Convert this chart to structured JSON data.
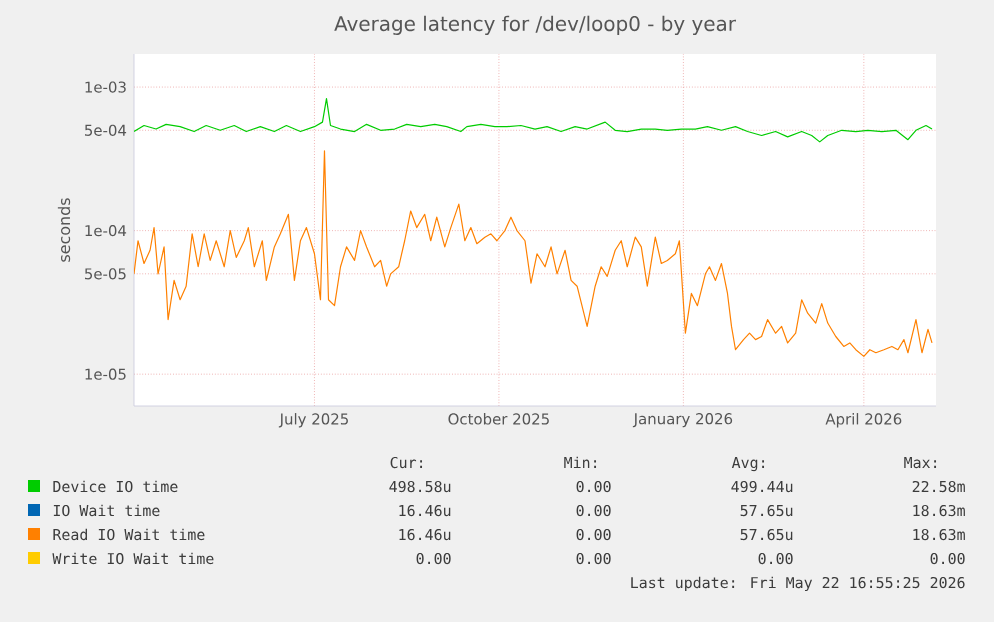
{
  "chart_data": {
    "type": "line",
    "title": "Average latency for /dev/loop0 - by year",
    "ylabel": "seconds",
    "log": "y",
    "grid": true,
    "legend": "bottom",
    "marker": "none",
    "line_style": "solid",
    "xlim": [
      "2025-04-17",
      "2026-05-22"
    ],
    "xticks": [
      {
        "value": "2025-07-16",
        "label": "July 2025"
      },
      {
        "value": "2025-10-16",
        "label": "October 2025"
      },
      {
        "value": "2026-01-16",
        "label": "January 2026"
      },
      {
        "value": "2026-04-16",
        "label": "April 2026"
      }
    ],
    "ylim": [
      6e-06,
      0.0017
    ],
    "yticks": [
      {
        "value": 1e-05,
        "label": "1e-05"
      },
      {
        "value": 5e-05,
        "label": "5e-05"
      },
      {
        "value": 0.0001,
        "label": "1e-04"
      },
      {
        "value": 0.0005,
        "label": "5e-04"
      },
      {
        "value": 0.001,
        "label": "1e-03"
      }
    ],
    "series": [
      {
        "name": "Device IO time",
        "color": "#00cc00",
        "x": [
          "2025-04-17",
          "2025-04-22",
          "2025-04-28",
          "2025-05-03",
          "2025-05-10",
          "2025-05-17",
          "2025-05-23",
          "2025-05-30",
          "2025-06-06",
          "2025-06-12",
          "2025-06-19",
          "2025-06-26",
          "2025-07-02",
          "2025-07-09",
          "2025-07-16",
          "2025-07-20",
          "2025-07-22",
          "2025-07-24",
          "2025-07-29",
          "2025-08-05",
          "2025-08-11",
          "2025-08-18",
          "2025-08-25",
          "2025-08-31",
          "2025-09-07",
          "2025-09-14",
          "2025-09-20",
          "2025-09-27",
          "2025-09-30",
          "2025-10-07",
          "2025-10-14",
          "2025-10-20",
          "2025-10-27",
          "2025-11-03",
          "2025-11-09",
          "2025-11-16",
          "2025-11-23",
          "2025-11-29",
          "2025-12-08",
          "2025-12-13",
          "2025-12-19",
          "2025-12-26",
          "2026-01-02",
          "2026-01-08",
          "2026-01-15",
          "2026-01-22",
          "2026-01-28",
          "2026-02-04",
          "2026-02-11",
          "2026-02-17",
          "2026-02-24",
          "2026-03-03",
          "2026-03-09",
          "2026-03-16",
          "2026-03-21",
          "2026-03-25",
          "2026-03-29",
          "2026-04-05",
          "2026-04-12",
          "2026-04-18",
          "2026-04-25",
          "2026-05-02",
          "2026-05-08",
          "2026-05-12",
          "2026-05-17",
          "2026-05-20"
        ],
        "values": [
          0.00049,
          0.00054,
          0.00051,
          0.00055,
          0.00053,
          0.00049,
          0.00054,
          0.0005,
          0.00054,
          0.00049,
          0.00053,
          0.00049,
          0.00054,
          0.00049,
          0.00053,
          0.00057,
          0.00083,
          0.00054,
          0.00051,
          0.00049,
          0.00055,
          0.0005,
          0.00051,
          0.00055,
          0.00053,
          0.00055,
          0.00053,
          0.00049,
          0.00053,
          0.00055,
          0.00053,
          0.00053,
          0.00054,
          0.00051,
          0.00053,
          0.00049,
          0.00053,
          0.00051,
          0.00057,
          0.0005,
          0.00049,
          0.00051,
          0.00051,
          0.0005,
          0.00051,
          0.00051,
          0.00053,
          0.0005,
          0.00053,
          0.00049,
          0.00046,
          0.00049,
          0.00045,
          0.00049,
          0.00046,
          0.000415,
          0.00046,
          0.0005,
          0.00049,
          0.0005,
          0.00049,
          0.0005,
          0.00043,
          0.0005,
          0.00054,
          0.00051
        ]
      },
      {
        "name": "IO Wait time",
        "color": "#0066b3"
      },
      {
        "name": "Read IO Wait time",
        "color": "#ff8000",
        "x": [
          "2025-04-17",
          "2025-04-19",
          "2025-04-22",
          "2025-04-25",
          "2025-04-27",
          "2025-04-29",
          "2025-05-02",
          "2025-05-04",
          "2025-05-07",
          "2025-05-10",
          "2025-05-13",
          "2025-05-16",
          "2025-05-19",
          "2025-05-22",
          "2025-05-25",
          "2025-05-28",
          "2025-06-01",
          "2025-06-04",
          "2025-06-07",
          "2025-06-11",
          "2025-06-13",
          "2025-06-16",
          "2025-06-20",
          "2025-06-22",
          "2025-06-26",
          "2025-06-29",
          "2025-07-03",
          "2025-07-06",
          "2025-07-09",
          "2025-07-12",
          "2025-07-16",
          "2025-07-19",
          "2025-07-21",
          "2025-07-23",
          "2025-07-26",
          "2025-07-29",
          "2025-08-01",
          "2025-08-05",
          "2025-08-08",
          "2025-08-11",
          "2025-08-15",
          "2025-08-18",
          "2025-08-21",
          "2025-08-23",
          "2025-08-27",
          "2025-08-30",
          "2025-09-02",
          "2025-09-05",
          "2025-09-09",
          "2025-09-12",
          "2025-09-15",
          "2025-09-19",
          "2025-09-22",
          "2025-09-26",
          "2025-09-29",
          "2025-10-02",
          "2025-10-05",
          "2025-10-09",
          "2025-10-12",
          "2025-10-15",
          "2025-10-19",
          "2025-10-22",
          "2025-10-25",
          "2025-10-29",
          "2025-11-01",
          "2025-11-04",
          "2025-11-08",
          "2025-11-11",
          "2025-11-14",
          "2025-11-18",
          "2025-11-21",
          "2025-11-24",
          "2025-11-29",
          "2025-12-03",
          "2025-12-06",
          "2025-12-09",
          "2025-12-13",
          "2025-12-16",
          "2025-12-19",
          "2025-12-23",
          "2025-12-26",
          "2025-12-29",
          "2026-01-02",
          "2026-01-05",
          "2026-01-08",
          "2026-01-12",
          "2026-01-14",
          "2026-01-17",
          "2026-01-20",
          "2026-01-23",
          "2026-01-27",
          "2026-01-29",
          "2026-02-01",
          "2026-02-04",
          "2026-02-07",
          "2026-02-09",
          "2026-02-11",
          "2026-02-15",
          "2026-02-18",
          "2026-02-21",
          "2026-02-24",
          "2026-02-27",
          "2026-03-03",
          "2026-03-06",
          "2026-03-09",
          "2026-03-13",
          "2026-03-16",
          "2026-03-19",
          "2026-03-23",
          "2026-03-26",
          "2026-03-29",
          "2026-04-02",
          "2026-04-06",
          "2026-04-09",
          "2026-04-12",
          "2026-04-16",
          "2026-04-19",
          "2026-04-22",
          "2026-04-26",
          "2026-04-30",
          "2026-05-03",
          "2026-05-06",
          "2026-05-08",
          "2026-05-12",
          "2026-05-15",
          "2026-05-18",
          "2026-05-20"
        ],
        "values": [
          5e-05,
          8.5e-05,
          5.9e-05,
          7.3e-05,
          0.000105,
          5e-05,
          7.7e-05,
          2.4e-05,
          4.5e-05,
          3.3e-05,
          4.1e-05,
          9.5e-05,
          5.6e-05,
          9.5e-05,
          6.2e-05,
          8.5e-05,
          5.6e-05,
          0.0001,
          6.5e-05,
          8.5e-05,
          0.000105,
          5.6e-05,
          8.5e-05,
          4.5e-05,
          7.7e-05,
          9.5e-05,
          0.00013,
          4.5e-05,
          8.5e-05,
          0.000105,
          6.9e-05,
          3.3e-05,
          0.00036,
          3.3e-05,
          3e-05,
          5.6e-05,
          7.7e-05,
          6.2e-05,
          0.0001,
          7.7e-05,
          5.6e-05,
          6.2e-05,
          4.1e-05,
          5e-05,
          5.6e-05,
          8.5e-05,
          0.000137,
          0.000105,
          0.00013,
          8.5e-05,
          0.000124,
          7.7e-05,
          0.000105,
          0.000153,
          8.5e-05,
          0.000105,
          8.1e-05,
          9e-05,
          9.5e-05,
          8.5e-05,
          0.0001,
          0.000124,
          0.0001,
          8.5e-05,
          4.3e-05,
          6.9e-05,
          5.6e-05,
          7.7e-05,
          5e-05,
          7.3e-05,
          4.5e-05,
          4.1e-05,
          2.15e-05,
          4.1e-05,
          5.6e-05,
          4.8e-05,
          7.3e-05,
          8.5e-05,
          5.6e-05,
          9e-05,
          7.7e-05,
          4.1e-05,
          9e-05,
          5.9e-05,
          6.2e-05,
          6.9e-05,
          8.5e-05,
          1.93e-05,
          3.65e-05,
          3e-05,
          5e-05,
          5.6e-05,
          4.5e-05,
          5.9e-05,
          3.65e-05,
          2.15e-05,
          1.48e-05,
          1.74e-05,
          1.93e-05,
          1.74e-05,
          1.83e-05,
          2.4e-05,
          1.93e-05,
          2.15e-05,
          1.65e-05,
          1.93e-05,
          3.3e-05,
          2.66e-05,
          2.27e-05,
          3.1e-05,
          2.27e-05,
          1.83e-05,
          1.56e-05,
          1.65e-05,
          1.48e-05,
          1.33e-05,
          1.48e-05,
          1.41e-05,
          1.48e-05,
          1.56e-05,
          1.48e-05,
          1.74e-05,
          1.41e-05,
          2.4e-05,
          1.41e-05,
          2.05e-05,
          1.65e-05
        ]
      },
      {
        "name": "Write IO Wait time",
        "color": "#ffcc00"
      }
    ],
    "annotations": [
      "Cur:",
      "Min:",
      "Avg:",
      "Max:",
      "498.58u",
      "0.00",
      "499.44u",
      "22.58m",
      "16.46u",
      "0.00",
      "57.65u",
      "18.63m",
      "16.46u",
      "0.00",
      "57.65u",
      "18.63m",
      "0.00",
      "0.00",
      "0.00",
      "0.00",
      "Last update: Fri May 22 16:55:25 2026"
    ]
  }
}
